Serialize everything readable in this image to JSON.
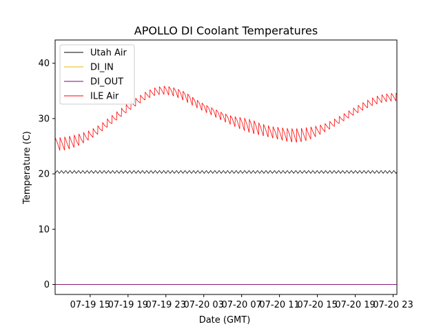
{
  "chart_data": {
    "type": "line",
    "title": "APOLLO DI Coolant Temperatures",
    "xlabel": "Date (GMT)",
    "ylabel": "Temperature (C)",
    "xlim_hours": [
      11.3,
      47.4
    ],
    "x_unit": "hours since 07-19 00:00 GMT",
    "ylim": [
      -1.8,
      44.2
    ],
    "yticks": [
      0,
      10,
      20,
      30,
      40
    ],
    "xticks": [
      {
        "label": "07-19 15",
        "hour": 15
      },
      {
        "label": "07-19 19",
        "hour": 19
      },
      {
        "label": "07-19 23",
        "hour": 23
      },
      {
        "label": "07-20 03",
        "hour": 27
      },
      {
        "label": "07-20 07",
        "hour": 31
      },
      {
        "label": "07-20 11",
        "hour": 35
      },
      {
        "label": "07-20 15",
        "hour": 39
      },
      {
        "label": "07-20 19",
        "hour": 43
      },
      {
        "label": "07-20 23",
        "hour": 47
      }
    ],
    "legend_position": "upper-left",
    "series": [
      {
        "name": "Utah Air",
        "color": "#000000",
        "style": "oscillating",
        "x": [
          11.3,
          47.4
        ],
        "base": [
          20.1,
          20.1
        ],
        "peak": [
          20.6,
          20.6
        ],
        "cycle_hours": 0.45
      },
      {
        "name": "DI_IN",
        "color": "#e6b800",
        "style": "flat",
        "x": [
          11.3,
          47.4
        ],
        "values": [
          0.0,
          0.0
        ]
      },
      {
        "name": "DI_OUT",
        "color": "#800080",
        "style": "flat",
        "x": [
          11.3,
          47.4
        ],
        "values": [
          0.0,
          0.0
        ]
      },
      {
        "name": "ILE Air",
        "color": "#ff0000",
        "style": "sawtooth",
        "cycle_hours": 0.5,
        "x": [
          11.3,
          12.0,
          13.0,
          14.0,
          15.0,
          16.0,
          17.0,
          18.0,
          19.0,
          20.0,
          21.0,
          22.0,
          23.0,
          24.0,
          25.0,
          26.0,
          27.0,
          28.0,
          29.0,
          30.0,
          31.0,
          32.0,
          33.0,
          34.0,
          35.0,
          36.0,
          37.0,
          38.0,
          39.0,
          40.0,
          41.0,
          42.0,
          43.0,
          44.0,
          45.0,
          46.0,
          47.0,
          47.4
        ],
        "base": [
          24.5,
          24.2,
          24.6,
          25.3,
          26.3,
          27.4,
          28.7,
          30.0,
          31.3,
          32.5,
          33.6,
          34.3,
          34.4,
          34.0,
          33.2,
          32.2,
          31.3,
          30.5,
          29.6,
          28.8,
          28.0,
          27.4,
          27.0,
          26.6,
          26.2,
          25.8,
          25.7,
          26.1,
          26.9,
          27.8,
          28.8,
          29.8,
          30.8,
          31.7,
          32.5,
          33.0,
          33.2,
          33.2
        ],
        "peak": [
          26.5,
          26.6,
          26.9,
          27.3,
          27.9,
          28.9,
          30.2,
          31.5,
          32.8,
          33.9,
          35.0,
          35.7,
          35.9,
          35.5,
          34.8,
          33.6,
          32.6,
          31.8,
          31.0,
          30.4,
          30.2,
          29.8,
          29.1,
          28.6,
          28.4,
          28.2,
          28.2,
          28.4,
          28.7,
          29.2,
          30.1,
          31.1,
          32.1,
          33.1,
          33.9,
          34.4,
          34.6,
          34.6
        ]
      }
    ]
  }
}
